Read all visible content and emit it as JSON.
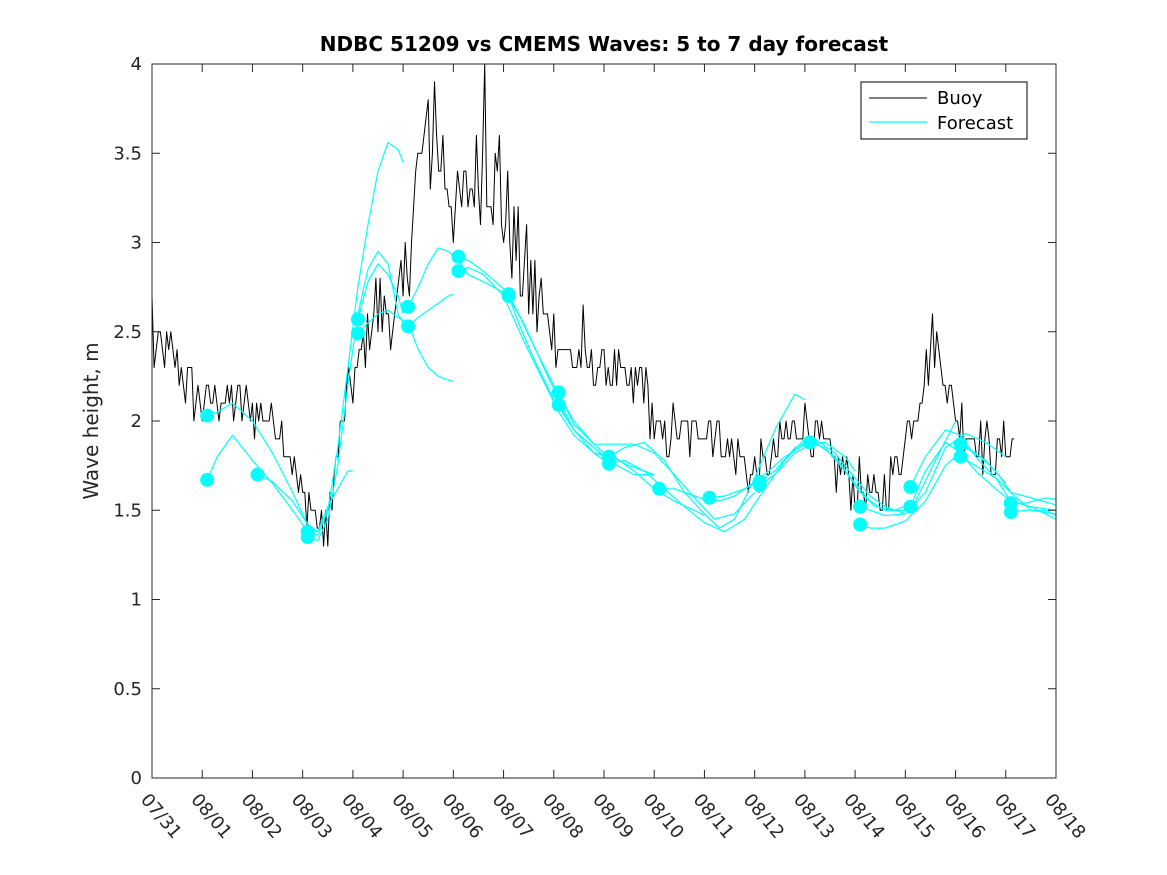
{
  "chart_data": {
    "type": "line",
    "title": "NDBC 51209 vs CMEMS Waves: 5 to 7 day forecast",
    "xlabel": "",
    "ylabel": "Wave height, m",
    "xlim": [
      0,
      18
    ],
    "ylim": [
      0,
      4
    ],
    "x_tick_values": [
      0,
      1,
      2,
      3,
      4,
      5,
      6,
      7,
      8,
      9,
      10,
      11,
      12,
      13,
      14,
      15,
      16,
      17,
      18
    ],
    "x_tick_labels": [
      "07/31",
      "08/01",
      "08/02",
      "08/03",
      "08/04",
      "08/05",
      "08/06",
      "08/07",
      "08/08",
      "08/09",
      "08/10",
      "08/11",
      "08/12",
      "08/13",
      "08/14",
      "08/15",
      "08/16",
      "08/17",
      "08/18"
    ],
    "y_tick_values": [
      0,
      0.5,
      1,
      1.5,
      2,
      2.5,
      3,
      3.5,
      4
    ],
    "y_tick_labels": [
      "0",
      "0.5",
      "1",
      "1.5",
      "2",
      "2.5",
      "3",
      "3.5",
      "4"
    ],
    "legend": {
      "position": "top-right",
      "entries": [
        {
          "label": "Buoy",
          "color": "#000000"
        },
        {
          "label": "Forecast",
          "color": "#00FFFF"
        }
      ]
    },
    "buoy": {
      "name": "Buoy",
      "color": "#000000",
      "anchors": [
        [
          0,
          2.4
        ],
        [
          0.3,
          2.4
        ],
        [
          0.6,
          2.25
        ],
        [
          0.8,
          2.15
        ],
        [
          1.0,
          2.1
        ],
        [
          1.3,
          2.15
        ],
        [
          1.6,
          2.1
        ],
        [
          1.8,
          2.1
        ],
        [
          2.0,
          2.05
        ],
        [
          2.3,
          2.05
        ],
        [
          2.6,
          1.95
        ],
        [
          2.8,
          1.75
        ],
        [
          2.95,
          1.6
        ],
        [
          3.1,
          1.55
        ],
        [
          3.25,
          1.5
        ],
        [
          3.4,
          1.4
        ],
        [
          3.55,
          1.55
        ],
        [
          3.7,
          1.8
        ],
        [
          3.85,
          2.05
        ],
        [
          4.0,
          2.2
        ],
        [
          4.15,
          2.35
        ],
        [
          4.3,
          2.5
        ],
        [
          4.45,
          2.65
        ],
        [
          4.6,
          2.6
        ],
        [
          4.8,
          2.55
        ],
        [
          5.0,
          2.65
        ],
        [
          5.1,
          2.9
        ],
        [
          5.2,
          3.2
        ],
        [
          5.35,
          3.45
        ],
        [
          5.5,
          3.5
        ],
        [
          5.65,
          3.5
        ],
        [
          5.8,
          3.45
        ],
        [
          5.95,
          3.3
        ],
        [
          6.1,
          3.15
        ],
        [
          6.3,
          3.3
        ],
        [
          6.5,
          3.4
        ],
        [
          6.65,
          3.45
        ],
        [
          6.8,
          3.35
        ],
        [
          7.0,
          3.2
        ],
        [
          7.2,
          3.0
        ],
        [
          7.4,
          2.85
        ],
        [
          7.6,
          2.7
        ],
        [
          7.8,
          2.6
        ],
        [
          8.0,
          2.5
        ],
        [
          8.2,
          2.4
        ],
        [
          8.4,
          2.35
        ],
        [
          8.6,
          2.3
        ],
        [
          8.8,
          2.3
        ],
        [
          9.0,
          2.3
        ],
        [
          9.2,
          2.25
        ],
        [
          9.4,
          2.2
        ],
        [
          9.6,
          2.2
        ],
        [
          9.8,
          2.25
        ],
        [
          10.0,
          1.95
        ],
        [
          10.2,
          1.9
        ],
        [
          10.4,
          1.95
        ],
        [
          10.6,
          1.9
        ],
        [
          10.8,
          1.95
        ],
        [
          11.0,
          2.0
        ],
        [
          11.2,
          1.95
        ],
        [
          11.4,
          1.9
        ],
        [
          11.6,
          1.8
        ],
        [
          11.8,
          1.75
        ],
        [
          12.0,
          1.7
        ],
        [
          12.2,
          1.75
        ],
        [
          12.4,
          1.8
        ],
        [
          12.6,
          1.9
        ],
        [
          12.8,
          1.95
        ],
        [
          13.0,
          2.0
        ],
        [
          13.2,
          1.9
        ],
        [
          13.4,
          1.8
        ],
        [
          13.6,
          1.75
        ],
        [
          13.8,
          1.7
        ],
        [
          14.0,
          1.65
        ],
        [
          14.2,
          1.6
        ],
        [
          14.4,
          1.55
        ],
        [
          14.6,
          1.6
        ],
        [
          14.8,
          1.75
        ],
        [
          15.0,
          1.9
        ],
        [
          15.2,
          2.05
        ],
        [
          15.4,
          2.25
        ],
        [
          15.5,
          2.4
        ],
        [
          15.6,
          2.45
        ],
        [
          15.7,
          2.35
        ],
        [
          15.85,
          2.2
        ],
        [
          16.0,
          2.05
        ],
        [
          16.2,
          1.95
        ],
        [
          16.4,
          1.9
        ],
        [
          16.6,
          1.85
        ],
        [
          16.8,
          1.8
        ],
        [
          17.0,
          1.9
        ],
        [
          17.2,
          1.85
        ]
      ],
      "spikes": [
        [
          0.02,
          2.7
        ],
        [
          5.48,
          3.8
        ],
        [
          5.62,
          3.9
        ],
        [
          6.62,
          4.0
        ],
        [
          6.9,
          3.6
        ],
        [
          3.5,
          1.3
        ],
        [
          8.6,
          2.65
        ],
        [
          15.55,
          2.6
        ]
      ]
    },
    "forecast_series": [
      {
        "name": "Forecast",
        "start_marker": true,
        "x": [
          1.1,
          1.3,
          1.6,
          2.0,
          2.4,
          2.8,
          3.1,
          3.3
        ],
        "y": [
          2.03,
          2.05,
          2.1,
          2.0,
          1.82,
          1.6,
          1.42,
          1.38
        ]
      },
      {
        "name": "Forecast",
        "start_marker": true,
        "x": [
          1.1,
          1.3,
          1.6,
          2.0,
          2.4,
          2.8,
          3.1
        ],
        "y": [
          1.67,
          1.8,
          1.92,
          1.78,
          1.65,
          1.5,
          1.38
        ]
      },
      {
        "name": "Forecast",
        "start_marker": true,
        "x": [
          2.1,
          2.4,
          2.8,
          3.1,
          3.3,
          3.5,
          3.7,
          3.9,
          4.0
        ],
        "y": [
          1.7,
          1.66,
          1.55,
          1.42,
          1.38,
          1.52,
          1.62,
          1.72,
          1.72
        ]
      },
      {
        "name": "Forecast",
        "start_marker": true,
        "x": [
          3.1,
          3.3,
          3.5,
          3.7,
          3.9,
          4.1,
          4.3,
          4.5,
          4.7,
          4.9,
          5.0
        ],
        "y": [
          1.38,
          1.36,
          1.5,
          1.85,
          2.3,
          2.75,
          3.1,
          3.4,
          3.56,
          3.52,
          3.45
        ]
      },
      {
        "name": "Forecast",
        "start_marker": true,
        "x": [
          3.1,
          3.3,
          3.5,
          3.7,
          3.9,
          4.1,
          4.3,
          4.5,
          4.7,
          4.9,
          5.0
        ],
        "y": [
          1.35,
          1.33,
          1.45,
          1.75,
          2.2,
          2.6,
          2.85,
          2.95,
          2.88,
          2.6,
          2.55
        ]
      },
      {
        "name": "Forecast",
        "start_marker": true,
        "x": [
          4.1,
          4.3,
          4.5,
          4.7,
          4.9,
          5.0
        ],
        "y": [
          2.57,
          2.78,
          2.88,
          2.82,
          2.7,
          2.6
        ]
      },
      {
        "name": "Forecast",
        "start_marker": true,
        "x": [
          4.1,
          4.3,
          4.5,
          4.7,
          4.9,
          5.1,
          5.3,
          5.5,
          5.7,
          6.0
        ],
        "y": [
          2.49,
          2.55,
          2.6,
          2.62,
          2.58,
          2.55,
          2.4,
          2.3,
          2.25,
          2.22
        ]
      },
      {
        "name": "Forecast",
        "start_marker": true,
        "x": [
          5.1,
          5.3,
          5.5,
          5.7,
          5.9,
          6.1,
          6.3,
          6.6,
          7.0
        ],
        "y": [
          2.64,
          2.75,
          2.88,
          2.97,
          2.95,
          2.9,
          2.82,
          2.78,
          2.72
        ]
      },
      {
        "name": "Forecast",
        "start_marker": true,
        "x": [
          5.1,
          5.3,
          5.5,
          5.7,
          5.9,
          6.0
        ],
        "y": [
          2.53,
          2.58,
          2.62,
          2.66,
          2.7,
          2.71
        ]
      },
      {
        "name": "Forecast",
        "start_marker": true,
        "x": [
          6.1,
          6.3,
          6.6,
          7.0,
          7.4,
          7.8,
          8.1,
          8.4,
          8.8,
          9.0
        ],
        "y": [
          2.92,
          2.9,
          2.84,
          2.74,
          2.55,
          2.3,
          2.12,
          1.95,
          1.85,
          1.8
        ]
      },
      {
        "name": "Forecast",
        "start_marker": true,
        "x": [
          6.1,
          6.3,
          6.6,
          7.0,
          7.4,
          7.8,
          8.1,
          8.4,
          8.8,
          9.0
        ],
        "y": [
          2.84,
          2.86,
          2.82,
          2.7,
          2.45,
          2.22,
          2.05,
          1.92,
          1.82,
          1.78
        ]
      },
      {
        "name": "Forecast",
        "start_marker": true,
        "x": [
          7.1,
          7.3,
          7.6,
          8.0,
          8.4,
          8.8,
          9.0,
          9.5,
          10.0
        ],
        "y": [
          2.71,
          2.6,
          2.42,
          2.2,
          2.0,
          1.87,
          1.82,
          1.75,
          1.7
        ]
      },
      {
        "name": "Forecast",
        "start_marker": true,
        "x": [
          7.1,
          7.3,
          7.6,
          8.0,
          8.4,
          8.8,
          9.2,
          9.6,
          10.0
        ],
        "y": [
          2.7,
          2.55,
          2.35,
          2.12,
          1.95,
          1.85,
          1.76,
          1.7,
          1.7
        ]
      },
      {
        "name": "Forecast",
        "start_marker": true,
        "x": [
          8.1,
          8.4,
          8.8,
          9.2,
          9.6,
          10.0,
          10.4,
          10.8,
          11.2,
          11.6,
          12.0
        ],
        "y": [
          2.16,
          1.98,
          1.87,
          1.87,
          1.87,
          1.82,
          1.7,
          1.57,
          1.45,
          1.48,
          1.6
        ]
      },
      {
        "name": "Forecast",
        "start_marker": true,
        "x": [
          8.1,
          8.4,
          8.8,
          9.2,
          9.6,
          10.0,
          10.4,
          10.8,
          11.0
        ],
        "y": [
          2.09,
          1.95,
          1.82,
          1.8,
          1.72,
          1.62,
          1.55,
          1.5,
          1.47
        ]
      },
      {
        "name": "Forecast",
        "start_marker": true,
        "x": [
          9.1,
          9.4,
          9.8,
          10.2,
          10.6,
          11.0,
          11.3,
          11.6,
          12.0,
          12.4,
          12.8,
          13.0
        ],
        "y": [
          1.8,
          1.85,
          1.88,
          1.78,
          1.6,
          1.48,
          1.4,
          1.45,
          1.68,
          1.95,
          2.15,
          2.12
        ]
      },
      {
        "name": "Forecast",
        "start_marker": true,
        "x": [
          9.1,
          9.4,
          9.8,
          10.2,
          10.6,
          11.0,
          11.4,
          11.8,
          12.2,
          12.6,
          13.0
        ],
        "y": [
          1.76,
          1.78,
          1.72,
          1.62,
          1.52,
          1.43,
          1.38,
          1.45,
          1.62,
          1.78,
          1.9
        ]
      },
      {
        "name": "Forecast",
        "start_marker": true,
        "x": [
          10.1,
          10.4,
          10.8,
          11.0,
          11.2,
          11.4,
          11.6,
          11.8,
          12.0
        ],
        "y": [
          1.62,
          1.62,
          1.58,
          1.56,
          1.55,
          1.56,
          1.58,
          1.62,
          1.65
        ]
      },
      {
        "name": "Forecast",
        "start_marker": true,
        "x": [
          11.1,
          11.4,
          11.8,
          12.2,
          12.6,
          13.0,
          13.4,
          13.8,
          14.0
        ],
        "y": [
          1.57,
          1.58,
          1.62,
          1.7,
          1.8,
          1.87,
          1.88,
          1.8,
          1.72
        ]
      },
      {
        "name": "Forecast",
        "start_marker": true,
        "x": [
          12.1,
          12.4,
          12.8,
          13.2,
          13.6,
          14.0,
          14.3,
          14.6,
          15.0
        ],
        "y": [
          1.66,
          1.72,
          1.85,
          1.9,
          1.82,
          1.68,
          1.58,
          1.52,
          1.48
        ]
      },
      {
        "name": "Forecast",
        "start_marker": true,
        "x": [
          12.1,
          12.4,
          12.8,
          13.2,
          13.6,
          14.0,
          14.3,
          14.6,
          15.0
        ],
        "y": [
          1.64,
          1.7,
          1.82,
          1.88,
          1.8,
          1.65,
          1.55,
          1.5,
          1.5
        ]
      },
      {
        "name": "Forecast",
        "start_marker": true,
        "x": [
          13.1,
          13.4,
          13.8,
          14.1,
          14.4,
          14.8,
          15.2,
          15.6,
          16.0
        ],
        "y": [
          1.88,
          1.85,
          1.72,
          1.6,
          1.52,
          1.5,
          1.55,
          1.78,
          2.0
        ]
      },
      {
        "name": "Forecast",
        "start_marker": true,
        "x": [
          14.1,
          14.3,
          14.6,
          15.0,
          15.4,
          15.8,
          16.2,
          16.6,
          17.0
        ],
        "y": [
          1.52,
          1.5,
          1.47,
          1.48,
          1.6,
          1.85,
          1.93,
          1.88,
          1.8
        ]
      },
      {
        "name": "Forecast",
        "start_marker": true,
        "x": [
          14.1,
          14.3,
          14.6,
          15.0,
          15.4,
          15.8,
          16.2,
          16.6,
          17.0
        ],
        "y": [
          1.42,
          1.4,
          1.4,
          1.44,
          1.55,
          1.75,
          1.85,
          1.78,
          1.65
        ]
      },
      {
        "name": "Forecast",
        "start_marker": true,
        "x": [
          15.1,
          15.4,
          15.8,
          16.1,
          16.4,
          16.8,
          17.1,
          17.5,
          18.0
        ],
        "y": [
          1.63,
          1.8,
          1.95,
          1.92,
          1.8,
          1.68,
          1.6,
          1.57,
          1.53
        ]
      },
      {
        "name": "Forecast",
        "start_marker": true,
        "x": [
          15.1,
          15.4,
          15.8,
          16.1,
          16.4,
          16.8,
          17.1,
          17.5,
          18.0
        ],
        "y": [
          1.52,
          1.72,
          1.88,
          1.82,
          1.72,
          1.62,
          1.55,
          1.52,
          1.5
        ]
      },
      {
        "name": "Forecast",
        "start_marker": true,
        "x": [
          16.1,
          16.4,
          16.8,
          17.1,
          17.5,
          18.0
        ],
        "y": [
          1.87,
          1.82,
          1.72,
          1.6,
          1.5,
          1.48
        ]
      },
      {
        "name": "Forecast",
        "start_marker": true,
        "x": [
          16.1,
          16.4,
          16.8,
          17.1,
          17.5,
          18.0
        ],
        "y": [
          1.8,
          1.75,
          1.68,
          1.55,
          1.52,
          1.45
        ]
      },
      {
        "name": "Forecast",
        "start_marker": true,
        "x": [
          17.1,
          17.4,
          17.8,
          18.0
        ],
        "y": [
          1.54,
          1.54,
          1.57,
          1.56
        ]
      },
      {
        "name": "Forecast",
        "start_marker": true,
        "x": [
          17.1,
          17.4,
          17.8,
          18.0
        ],
        "y": [
          1.49,
          1.5,
          1.5,
          1.47
        ]
      }
    ]
  }
}
